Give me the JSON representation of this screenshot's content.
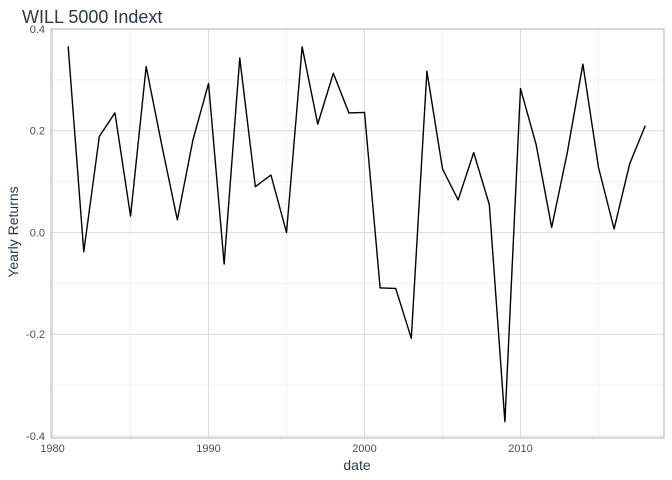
{
  "chart_data": {
    "type": "line",
    "title": "WILL 5000 Indext",
    "xlabel": "date",
    "ylabel": "Yearly Returns",
    "xlim": [
      1979.9,
      2019.2
    ],
    "ylim": [
      -0.404,
      0.4
    ],
    "x_ticks": [
      1980,
      1990,
      2000,
      2010
    ],
    "y_ticks": [
      -0.4,
      -0.2,
      0.0,
      0.2,
      0.4
    ],
    "x_tick_labels": [
      "1980",
      "1990",
      "2000",
      "2010"
    ],
    "y_tick_labels": [
      "-0.4",
      "-0.2",
      "0.0",
      "0.2",
      "0.4"
    ],
    "grid": true,
    "series": [
      {
        "color": "#000000",
        "x": [
          1981,
          1982,
          1983,
          1984,
          1985,
          1986,
          1987,
          1988,
          1989,
          1990,
          1991,
          1992,
          1993,
          1994,
          1995,
          1996,
          1997,
          1998,
          1999,
          2000,
          2001,
          2002,
          2003,
          2004,
          2005,
          2006,
          2007,
          2008,
          2009,
          2010,
          2011,
          2012,
          2013,
          2014,
          2015,
          2016,
          2017,
          2018
        ],
        "y": [
          0.366,
          -0.038,
          0.189,
          0.235,
          0.032,
          0.326,
          0.172,
          0.025,
          0.182,
          0.293,
          -0.062,
          0.343,
          0.09,
          0.113,
          0.0,
          0.365,
          0.213,
          0.313,
          0.235,
          0.236,
          -0.109,
          -0.11,
          -0.208,
          0.317,
          0.125,
          0.064,
          0.157,
          0.055,
          -0.372,
          0.283,
          0.173,
          0.01,
          0.157,
          0.331,
          0.128,
          0.007,
          0.135,
          0.21
        ]
      }
    ]
  }
}
